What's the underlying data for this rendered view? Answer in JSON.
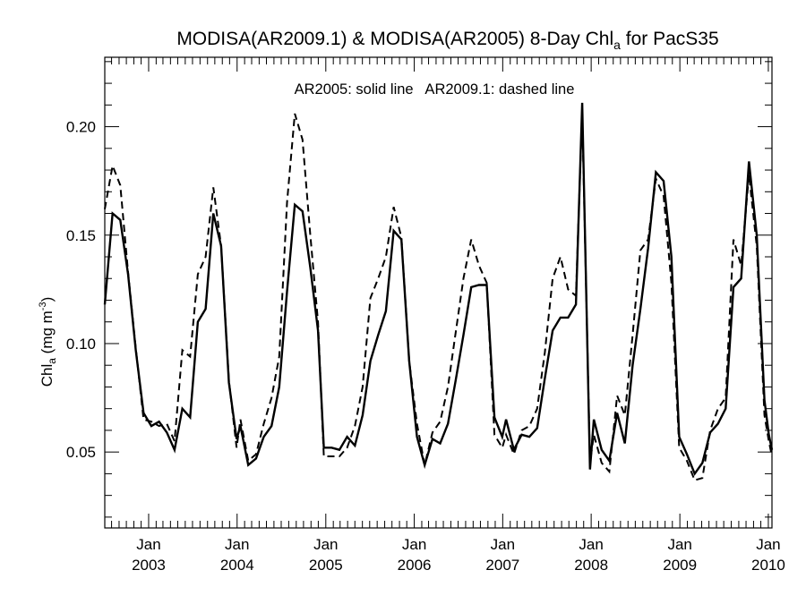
{
  "chart_data": {
    "type": "line",
    "title": {
      "main": "MODISA(AR2009.1) & MODISA(AR2005) 8-Day Chl",
      "sub": "a",
      "tail": " for PacS35"
    },
    "annotation": "AR2005: solid line   AR2009.1: dashed line",
    "ylabel": {
      "main": "Chl",
      "sub": "a",
      "unit": " (mg m",
      "sup": "-3",
      "close": ")"
    },
    "ylim": [
      0.015,
      0.232
    ],
    "xlim": [
      "2002-07-04",
      "2010-01-16"
    ],
    "yticks": [
      0.05,
      0.1,
      0.15,
      0.2
    ],
    "ytick_labels": [
      "0.05",
      "0.10",
      "0.15",
      "0.20"
    ],
    "xticks": [
      {
        "date": "2003-01-01",
        "month": "Jan",
        "year": "2003"
      },
      {
        "date": "2004-01-01",
        "month": "Jan",
        "year": "2004"
      },
      {
        "date": "2005-01-01",
        "month": "Jan",
        "year": "2005"
      },
      {
        "date": "2006-01-01",
        "month": "Jan",
        "year": "2006"
      },
      {
        "date": "2007-01-01",
        "month": "Jan",
        "year": "2007"
      },
      {
        "date": "2008-01-01",
        "month": "Jan",
        "year": "2008"
      },
      {
        "date": "2009-01-01",
        "month": "Jan",
        "year": "2009"
      },
      {
        "date": "2010-01-01",
        "month": "Jan",
        "year": "2010"
      }
    ],
    "grid": false,
    "series": [
      {
        "name": "AR2005",
        "style": "solid",
        "color": "#000000",
        "points": [
          [
            "2002-07-04",
            0.118
          ],
          [
            "2002-08-05",
            0.16
          ],
          [
            "2002-09-06",
            0.157
          ],
          [
            "2002-10-08",
            0.132
          ],
          [
            "2002-11-09",
            0.097
          ],
          [
            "2002-12-11",
            0.068
          ],
          [
            "2003-01-12",
            0.062
          ],
          [
            "2003-02-13",
            0.064
          ],
          [
            "2003-03-17",
            0.059
          ],
          [
            "2003-04-18",
            0.051
          ],
          [
            "2003-05-20",
            0.07
          ],
          [
            "2003-06-21",
            0.066
          ],
          [
            "2003-07-23",
            0.11
          ],
          [
            "2003-08-24",
            0.116
          ],
          [
            "2003-09-25",
            0.16
          ],
          [
            "2003-10-27",
            0.145
          ],
          [
            "2003-11-28",
            0.082
          ],
          [
            "2003-12-30",
            0.056
          ],
          [
            "2004-01-15",
            0.062
          ],
          [
            "2004-02-16",
            0.044
          ],
          [
            "2004-03-19",
            0.047
          ],
          [
            "2004-04-20",
            0.057
          ],
          [
            "2004-05-22",
            0.062
          ],
          [
            "2004-06-23",
            0.08
          ],
          [
            "2004-07-25",
            0.124
          ],
          [
            "2004-08-26",
            0.164
          ],
          [
            "2004-09-27",
            0.161
          ],
          [
            "2004-10-29",
            0.135
          ],
          [
            "2004-11-30",
            0.106
          ],
          [
            "2004-12-24",
            0.052
          ],
          [
            "2005-01-25",
            0.052
          ],
          [
            "2005-02-26",
            0.051
          ],
          [
            "2005-03-30",
            0.057
          ],
          [
            "2005-05-01",
            0.053
          ],
          [
            "2005-06-02",
            0.067
          ],
          [
            "2005-07-04",
            0.092
          ],
          [
            "2005-08-05",
            0.104
          ],
          [
            "2005-09-06",
            0.115
          ],
          [
            "2005-10-08",
            0.152
          ],
          [
            "2005-11-09",
            0.148
          ],
          [
            "2005-12-11",
            0.092
          ],
          [
            "2006-01-12",
            0.057
          ],
          [
            "2006-02-13",
            0.044
          ],
          [
            "2006-03-17",
            0.056
          ],
          [
            "2006-04-18",
            0.054
          ],
          [
            "2006-05-20",
            0.063
          ],
          [
            "2006-06-21",
            0.083
          ],
          [
            "2006-07-23",
            0.104
          ],
          [
            "2006-08-24",
            0.126
          ],
          [
            "2006-09-25",
            0.127
          ],
          [
            "2006-10-27",
            0.127
          ],
          [
            "2006-11-28",
            0.066
          ],
          [
            "2006-12-30",
            0.057
          ],
          [
            "2007-01-15",
            0.065
          ],
          [
            "2007-02-16",
            0.051
          ],
          [
            "2007-03-20",
            0.058
          ],
          [
            "2007-04-21",
            0.057
          ],
          [
            "2007-05-23",
            0.061
          ],
          [
            "2007-06-24",
            0.084
          ],
          [
            "2007-07-26",
            0.106
          ],
          [
            "2007-08-27",
            0.112
          ],
          [
            "2007-09-28",
            0.112
          ],
          [
            "2007-10-30",
            0.118
          ],
          [
            "2007-11-25",
            0.211
          ],
          [
            "2007-12-27",
            0.042
          ],
          [
            "2008-01-12",
            0.065
          ],
          [
            "2008-02-13",
            0.051
          ],
          [
            "2008-03-16",
            0.046
          ],
          [
            "2008-04-17",
            0.068
          ],
          [
            "2008-05-19",
            0.054
          ],
          [
            "2008-06-20",
            0.09
          ],
          [
            "2008-07-22",
            0.116
          ],
          [
            "2008-08-23",
            0.144
          ],
          [
            "2008-09-24",
            0.179
          ],
          [
            "2008-10-26",
            0.175
          ],
          [
            "2008-11-27",
            0.14
          ],
          [
            "2008-12-29",
            0.057
          ],
          [
            "2009-01-30",
            0.049
          ],
          [
            "2009-03-03",
            0.04
          ],
          [
            "2009-04-04",
            0.045
          ],
          [
            "2009-05-06",
            0.059
          ],
          [
            "2009-06-07",
            0.063
          ],
          [
            "2009-07-09",
            0.07
          ],
          [
            "2009-08-10",
            0.126
          ],
          [
            "2009-09-11",
            0.13
          ],
          [
            "2009-10-13",
            0.184
          ],
          [
            "2009-11-14",
            0.15
          ],
          [
            "2009-12-16",
            0.074
          ],
          [
            "2010-01-03",
            0.058
          ],
          [
            "2010-01-16",
            0.051
          ]
        ]
      },
      {
        "name": "AR2009.1",
        "style": "dashed",
        "color": "#000000",
        "points": [
          [
            "2002-07-04",
            0.162
          ],
          [
            "2002-08-05",
            0.182
          ],
          [
            "2002-09-06",
            0.173
          ],
          [
            "2002-10-08",
            0.133
          ],
          [
            "2002-11-09",
            0.098
          ],
          [
            "2002-12-11",
            0.065
          ],
          [
            "2003-01-12",
            0.064
          ],
          [
            "2003-02-13",
            0.062
          ],
          [
            "2003-03-17",
            0.063
          ],
          [
            "2003-04-18",
            0.055
          ],
          [
            "2003-05-20",
            0.097
          ],
          [
            "2003-06-21",
            0.094
          ],
          [
            "2003-07-23",
            0.132
          ],
          [
            "2003-08-24",
            0.14
          ],
          [
            "2003-09-25",
            0.172
          ],
          [
            "2003-10-27",
            0.145
          ],
          [
            "2003-11-28",
            0.083
          ],
          [
            "2003-12-30",
            0.052
          ],
          [
            "2004-01-15",
            0.065
          ],
          [
            "2004-02-16",
            0.046
          ],
          [
            "2004-03-19",
            0.049
          ],
          [
            "2004-04-20",
            0.063
          ],
          [
            "2004-05-22",
            0.075
          ],
          [
            "2004-06-23",
            0.094
          ],
          [
            "2004-07-25",
            0.165
          ],
          [
            "2004-08-26",
            0.206
          ],
          [
            "2004-09-27",
            0.194
          ],
          [
            "2004-10-29",
            0.15
          ],
          [
            "2004-11-30",
            0.11
          ],
          [
            "2004-12-24",
            0.048
          ],
          [
            "2005-01-25",
            0.048
          ],
          [
            "2005-02-26",
            0.048
          ],
          [
            "2005-03-30",
            0.052
          ],
          [
            "2005-05-01",
            0.062
          ],
          [
            "2005-06-02",
            0.08
          ],
          [
            "2005-07-04",
            0.121
          ],
          [
            "2005-08-05",
            0.13
          ],
          [
            "2005-09-06",
            0.14
          ],
          [
            "2005-10-08",
            0.163
          ],
          [
            "2005-11-09",
            0.149
          ],
          [
            "2005-12-11",
            0.092
          ],
          [
            "2006-01-12",
            0.063
          ],
          [
            "2006-02-13",
            0.044
          ],
          [
            "2006-03-17",
            0.059
          ],
          [
            "2006-04-18",
            0.064
          ],
          [
            "2006-05-20",
            0.08
          ],
          [
            "2006-06-21",
            0.105
          ],
          [
            "2006-07-23",
            0.13
          ],
          [
            "2006-08-24",
            0.148
          ],
          [
            "2006-09-25",
            0.136
          ],
          [
            "2006-10-27",
            0.128
          ],
          [
            "2006-11-28",
            0.058
          ],
          [
            "2006-12-30",
            0.052
          ],
          [
            "2007-01-15",
            0.058
          ],
          [
            "2007-02-16",
            0.049
          ],
          [
            "2007-03-20",
            0.06
          ],
          [
            "2007-04-21",
            0.062
          ],
          [
            "2007-05-23",
            0.07
          ],
          [
            "2007-06-24",
            0.096
          ],
          [
            "2007-07-26",
            0.13
          ],
          [
            "2007-08-27",
            0.14
          ],
          [
            "2007-09-28",
            0.125
          ],
          [
            "2007-10-30",
            0.122
          ],
          [
            "2007-11-25",
            0.207
          ],
          [
            "2007-12-27",
            0.045
          ],
          [
            "2008-01-12",
            0.058
          ],
          [
            "2008-02-13",
            0.045
          ],
          [
            "2008-03-16",
            0.041
          ],
          [
            "2008-04-17",
            0.076
          ],
          [
            "2008-05-19",
            0.067
          ],
          [
            "2008-06-20",
            0.104
          ],
          [
            "2008-07-22",
            0.143
          ],
          [
            "2008-08-23",
            0.148
          ],
          [
            "2008-09-24",
            0.176
          ],
          [
            "2008-10-26",
            0.168
          ],
          [
            "2008-11-27",
            0.128
          ],
          [
            "2008-12-29",
            0.052
          ],
          [
            "2009-01-30",
            0.046
          ],
          [
            "2009-03-03",
            0.037
          ],
          [
            "2009-04-04",
            0.038
          ],
          [
            "2009-05-06",
            0.06
          ],
          [
            "2009-06-07",
            0.07
          ],
          [
            "2009-07-09",
            0.075
          ],
          [
            "2009-08-10",
            0.148
          ],
          [
            "2009-09-11",
            0.136
          ],
          [
            "2009-10-13",
            0.178
          ],
          [
            "2009-11-14",
            0.145
          ],
          [
            "2009-12-16",
            0.067
          ],
          [
            "2010-01-03",
            0.055
          ],
          [
            "2010-01-16",
            0.048
          ]
        ]
      }
    ]
  }
}
